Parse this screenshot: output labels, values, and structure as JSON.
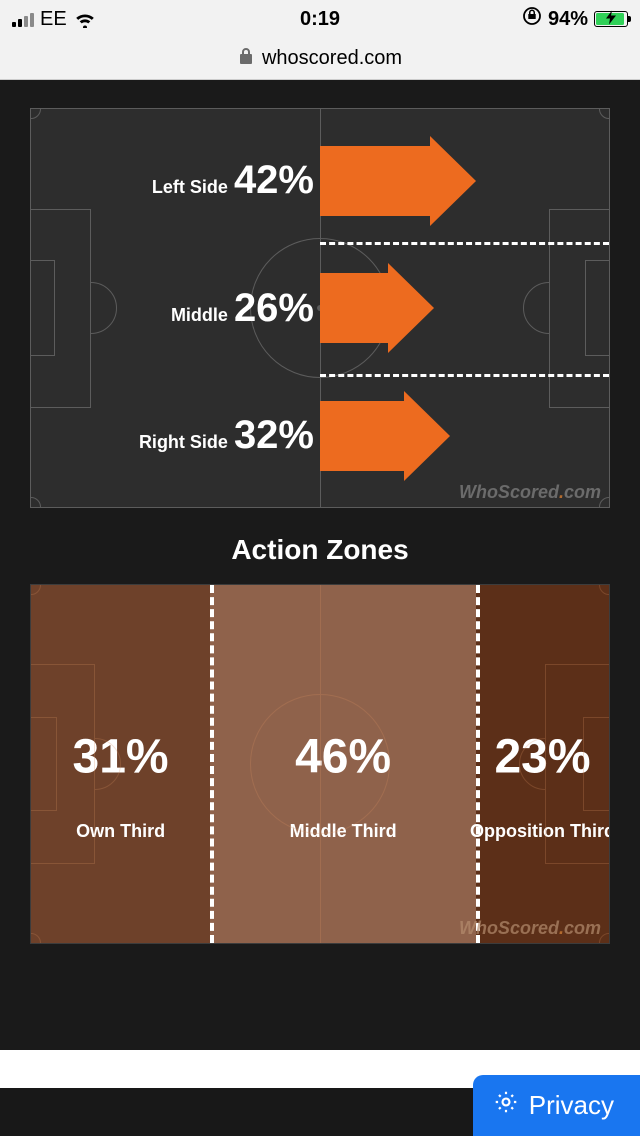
{
  "status": {
    "carrier": "EE",
    "time": "0:19",
    "battery_pct": "94%",
    "battery_fill_pct": 94,
    "orientation_lock": true
  },
  "address": {
    "host": "whoscored.com"
  },
  "attack_sides": {
    "type": "infographic",
    "arrow_color": "#ed6b1f",
    "pitch_bg": "#2d2d2d",
    "line_color": "#5c5c5c",
    "dash_color": "#ffffff",
    "label_fontsize": 18,
    "pct_fontsize": 40,
    "rows": [
      {
        "label": "Left Side",
        "pct_text": "42%",
        "pct": 42
      },
      {
        "label": "Middle",
        "pct_text": "26%",
        "pct": 26
      },
      {
        "label": "Right Side",
        "pct_text": "32%",
        "pct": 32
      }
    ],
    "watermark": "WhoScored.com"
  },
  "action_zones_title": "Action Zones",
  "action_zones": {
    "type": "infographic",
    "base_color": "#5c2f18",
    "highlight_step": 0.012,
    "line_color": "#d89060",
    "dash_color": "#ffffff",
    "pct_fontsize": 48,
    "label_fontsize": 18,
    "zones": [
      {
        "label": "Own Third",
        "pct_text": "31%",
        "pct": 31
      },
      {
        "label": "Middle Third",
        "pct_text": "46%",
        "pct": 46
      },
      {
        "label": "Opposition Third",
        "pct_text": "23%",
        "pct": 23
      }
    ],
    "watermark": "WhoScored.com"
  },
  "privacy_label": "Privacy",
  "colors": {
    "page_bg": "#1a1a1a",
    "accent_blue": "#1976f0",
    "battery_green": "#30d158"
  }
}
